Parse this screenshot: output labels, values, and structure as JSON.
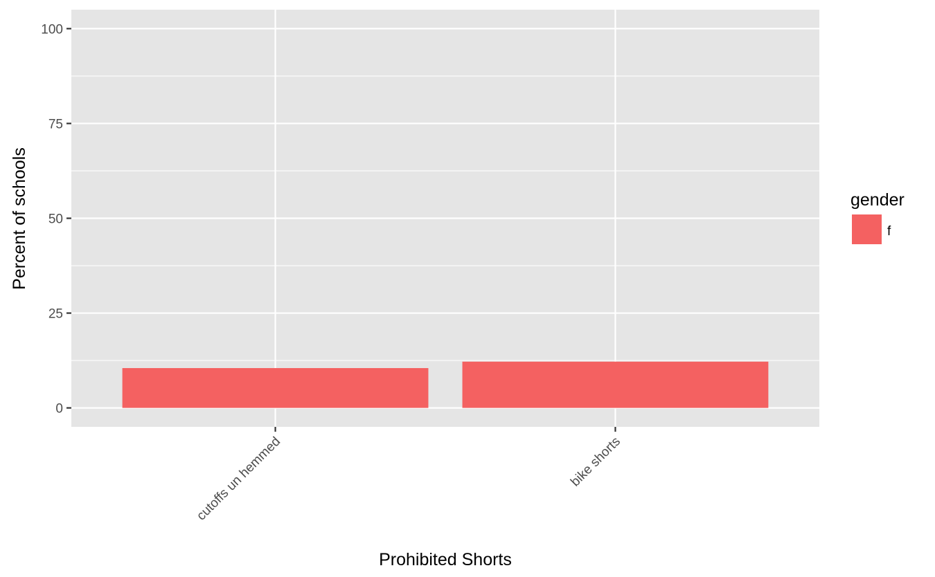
{
  "chart_data": {
    "type": "bar",
    "categories": [
      "cutoffs un hemmed",
      "bike shorts"
    ],
    "series": [
      {
        "name": "f",
        "values": [
          10.5,
          12.2
        ],
        "color": "#F8766D"
      }
    ],
    "xlabel": "Prohibited Shorts",
    "ylabel": "Percent of schools",
    "ylim": [
      -5,
      105
    ],
    "yticks": [
      0,
      25,
      50,
      75,
      100
    ],
    "ytick_labels": [
      "0",
      "25",
      "50",
      "75",
      "100"
    ],
    "grid": true,
    "legend": {
      "title": "gender",
      "position": "right",
      "entries": [
        "f"
      ]
    },
    "colors": {
      "panel": "#E5E5E5",
      "grid": "#FFFFFF",
      "bar": "#F46161",
      "tick_text": "#4D4D4D",
      "tick_mark": "#333333"
    }
  }
}
